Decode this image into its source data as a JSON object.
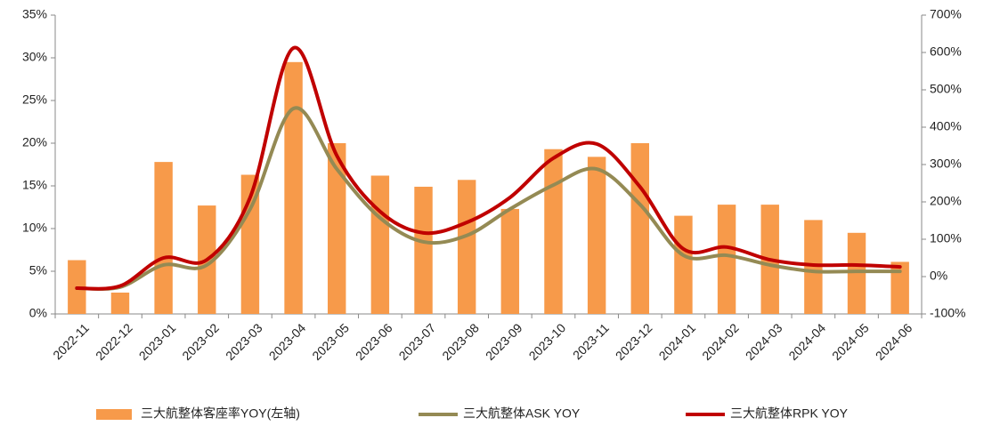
{
  "chart_data": {
    "type": "bar_line",
    "categories": [
      "2022-11",
      "2022-12",
      "2023-01",
      "2023-02",
      "2023-03",
      "2023-04",
      "2023-05",
      "2023-06",
      "2023-07",
      "2023-08",
      "2023-09",
      "2023-10",
      "2023-11",
      "2023-12",
      "2024-01",
      "2024-02",
      "2024-03",
      "2024-04",
      "2024-05",
      "2024-06"
    ],
    "series": [
      {
        "name": "三大航整体客座率YOY(左轴)",
        "color": "#f79a4a",
        "type": "bar",
        "values": [
          6.3,
          2.5,
          17.8,
          12.7,
          16.3,
          29.5,
          20.0,
          16.2,
          14.9,
          15.7,
          12.3,
          19.3,
          18.4,
          20.0,
          11.5,
          12.8,
          12.8,
          11.0,
          9.5,
          6.1
        ]
      },
      {
        "name": "三大航整体ASK YOY",
        "color": "#948a54",
        "type": "line",
        "axis": "y2",
        "values": [
          -31,
          -28,
          31,
          31,
          181,
          450,
          288,
          157,
          93,
          110,
          181,
          245,
          288,
          193,
          57,
          57,
          31,
          14,
          14,
          14
        ]
      },
      {
        "name": "三大航整体RPK YOY",
        "color": "#c00000",
        "type": "line",
        "axis": "y2",
        "values": [
          -31,
          -25,
          50,
          45,
          212,
          612,
          324,
          174,
          117,
          145,
          212,
          317,
          355,
          240,
          74,
          79,
          45,
          31,
          31,
          26
        ]
      }
    ],
    "ylim": [
      0,
      35
    ],
    "yticks": [
      {
        "value": 0,
        "label": "0%"
      },
      {
        "value": 5,
        "label": "5%"
      },
      {
        "value": 10,
        "label": "10%"
      },
      {
        "value": 15,
        "label": "15%"
      },
      {
        "value": 20,
        "label": "20%"
      },
      {
        "value": 25,
        "label": "25%"
      },
      {
        "value": 30,
        "label": "30%"
      },
      {
        "value": 35,
        "label": "35%"
      }
    ],
    "y2lim": [
      -100,
      700
    ],
    "y2ticks": [
      {
        "value": -100,
        "label": "-100%"
      },
      {
        "value": 0,
        "label": "0%"
      },
      {
        "value": 100,
        "label": "100%"
      },
      {
        "value": 200,
        "label": "200%"
      },
      {
        "value": 300,
        "label": "300%"
      },
      {
        "value": 400,
        "label": "400%"
      },
      {
        "value": 500,
        "label": "500%"
      },
      {
        "value": 600,
        "label": "600%"
      },
      {
        "value": 700,
        "label": "700%"
      }
    ],
    "grid": false,
    "legend": "bottom"
  }
}
